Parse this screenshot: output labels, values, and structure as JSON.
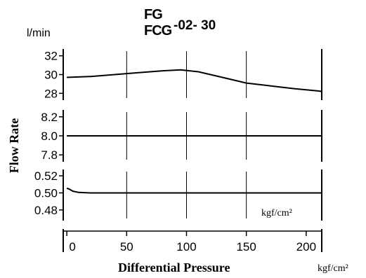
{
  "header": {
    "title_line1": "FG",
    "title_line2": "FCG",
    "model_suffix": "-02- 30",
    "y_unit": "l/min"
  },
  "y_axis_label": "Flow Rate",
  "x_axis_label": "Differential Pressure",
  "x_unit": "kgf/cm²",
  "chart_data": [
    {
      "type": "line",
      "xlabel": "Differential Pressure",
      "ylabel": "Flow Rate",
      "x_unit": "kgf/cm²",
      "y_unit": "l/min",
      "xlim": [
        -3,
        213
      ],
      "ylim": [
        27.5,
        32.5
      ],
      "yticks": [
        28,
        30,
        32
      ],
      "ytick_labels": [
        "28",
        "30",
        "32"
      ],
      "series": [
        {
          "x": [
            0,
            20,
            40,
            60,
            80,
            95,
            110,
            130,
            150,
            170,
            190,
            210,
            213
          ],
          "y": [
            29.7,
            29.8,
            30.0,
            30.2,
            30.4,
            30.5,
            30.3,
            29.7,
            29.1,
            28.8,
            28.5,
            28.25,
            28.2
          ]
        }
      ],
      "grid": "vertical"
    },
    {
      "type": "line",
      "xlabel": "Differential Pressure",
      "ylabel": "Flow Rate",
      "y_unit": "l/min",
      "xlim": [
        -3,
        213
      ],
      "ylim": [
        7.75,
        8.25
      ],
      "yticks": [
        7.8,
        8.0,
        8.2
      ],
      "ytick_labels": [
        "7.8",
        "8.0",
        "8.2"
      ],
      "series": [
        {
          "x": [
            0,
            50,
            100,
            150,
            213
          ],
          "y": [
            8.0,
            8.0,
            8.0,
            8.0,
            8.0
          ]
        }
      ],
      "grid": "vertical"
    },
    {
      "type": "line",
      "xlabel": "Differential Pressure",
      "ylabel": "Flow Rate",
      "y_unit": "l/min",
      "x_unit": "kgf/cm²",
      "xlim": [
        -3,
        213
      ],
      "ylim": [
        0.47,
        0.525
      ],
      "yticks": [
        0.48,
        0.5,
        0.52
      ],
      "ytick_labels": [
        "0.48",
        "0.50",
        "0.52"
      ],
      "series": [
        {
          "x": [
            0,
            2,
            5,
            10,
            20,
            50,
            100,
            150,
            213
          ],
          "y": [
            0.5055,
            0.5045,
            0.502,
            0.5005,
            0.5,
            0.5,
            0.5,
            0.5,
            0.5
          ]
        }
      ],
      "grid": "vertical"
    }
  ],
  "x_axis": {
    "xlim": [
      -3,
      213
    ],
    "ticks": [
      0,
      50,
      100,
      150,
      200
    ],
    "tick_labels": [
      "0",
      "50",
      "100",
      "150",
      "200"
    ]
  }
}
